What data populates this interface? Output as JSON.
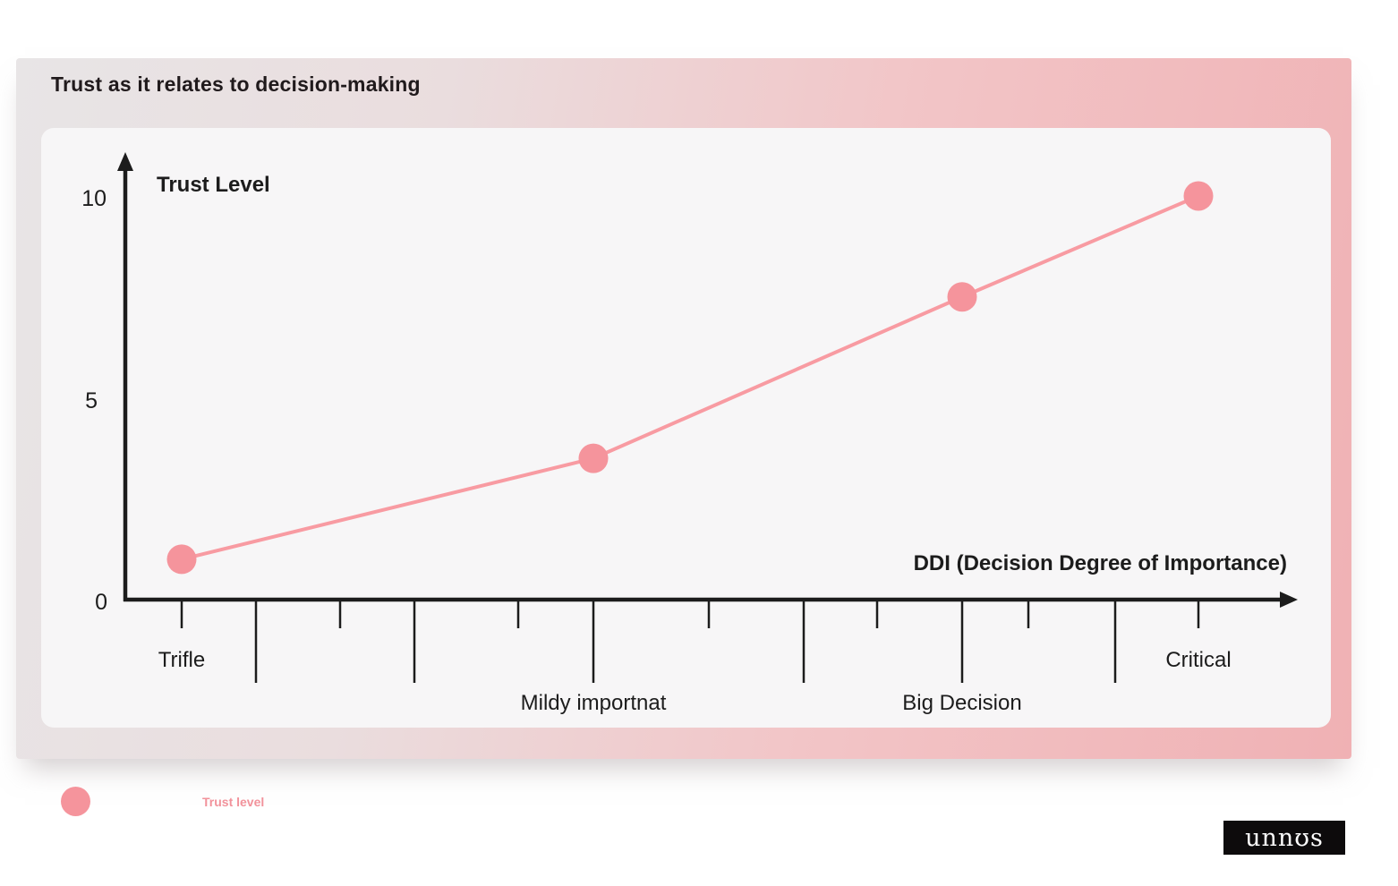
{
  "title": "Trust as it relates to decision-making",
  "chart_data": {
    "type": "line",
    "title": "Trust as it relates to decision-making",
    "xlabel": "DDI (Decision Degree of Importance)",
    "ylabel": "Trust Level",
    "categories": [
      "Trifle",
      "Mildy importnat",
      "Big Decision",
      "Critical"
    ],
    "series": [
      {
        "name": "Trust level",
        "values": [
          1,
          3.5,
          7.5,
          10
        ]
      }
    ],
    "ylim": [
      0,
      10
    ],
    "y_ticks": [
      0,
      5,
      10
    ],
    "y_tick_labels": [
      "0",
      "5",
      "10"
    ],
    "x_minor_tick_count": 13,
    "grid": false,
    "legend_position": "bottom-left",
    "line_color": "#f89ba2",
    "marker_color": "#f5949c",
    "axis_color": "#1c1c1c"
  },
  "legend": {
    "label": "Trust level",
    "marker_color": "#f5949c",
    "label_color": "#f2929b"
  },
  "logo": {
    "text": "unnʊs"
  },
  "colors": {
    "page_background": "#ffffff",
    "card_gradient_start": "#e8e5e6",
    "card_gradient_end": "#f0b1b4",
    "panel_background": "#f7f6f7",
    "title_text": "#201a1c",
    "logo_background": "#0d0b0c",
    "logo_text": "#ffffff"
  }
}
